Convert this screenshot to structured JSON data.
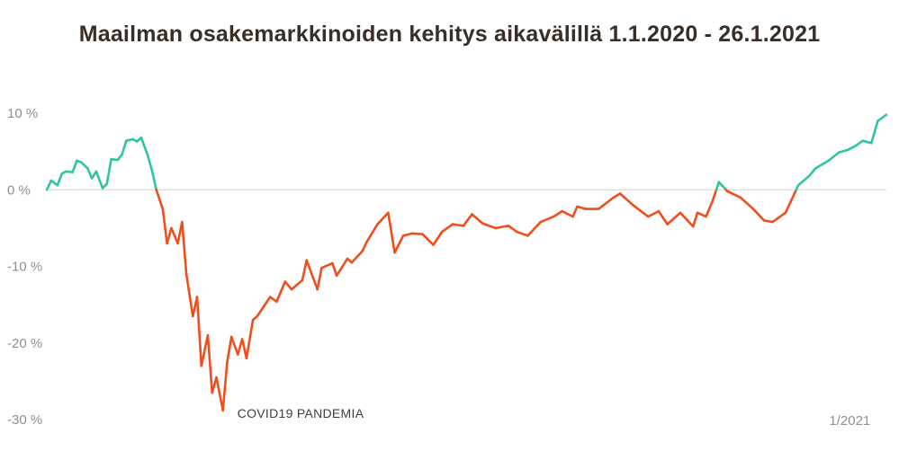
{
  "chart_data": {
    "type": "line",
    "title": "Maailman osakemarkkinoiden kehitys aikavälillä 1.1.2020 - 26.1.2021",
    "xlabel": "",
    "ylabel": "",
    "y_ticks": [
      "10 %",
      "0 %",
      "-10 %",
      "-20 %",
      "-30 %"
    ],
    "y_tick_values": [
      10,
      0,
      -10,
      -20,
      -30
    ],
    "ylim": [
      -30,
      10
    ],
    "x_tick_labels": [
      {
        "date": "2021-01-01",
        "label": "1/2021"
      }
    ],
    "xlim": [
      "2020-01-01",
      "2021-01-26"
    ],
    "annotation": "COVID19 PANDEMIA",
    "grid": "zero line only",
    "colors": {
      "positive": "#2ec4a5",
      "negative": "#f04e1d",
      "zero_line": "#d0d0d0"
    },
    "series": [
      {
        "x": [
          "2020-01-01",
          "2020-01-03",
          "2020-01-06",
          "2020-01-08",
          "2020-01-10",
          "2020-01-13",
          "2020-01-15",
          "2020-01-17",
          "2020-01-20",
          "2020-01-22",
          "2020-01-24",
          "2020-01-27",
          "2020-01-29",
          "2020-01-31",
          "2020-02-03",
          "2020-02-05",
          "2020-02-07",
          "2020-02-10",
          "2020-02-12",
          "2020-02-14",
          "2020-02-17",
          "2020-02-19",
          "2020-02-21",
          "2020-02-24",
          "2020-02-26",
          "2020-02-28",
          "2020-03-02",
          "2020-03-04",
          "2020-03-06",
          "2020-03-09",
          "2020-03-11",
          "2020-03-13",
          "2020-03-16",
          "2020-03-18",
          "2020-03-20",
          "2020-03-23",
          "2020-03-25",
          "2020-03-27",
          "2020-03-30",
          "2020-04-01",
          "2020-04-03",
          "2020-04-06",
          "2020-04-08",
          "2020-04-14",
          "2020-04-17",
          "2020-04-21",
          "2020-04-24",
          "2020-04-29",
          "2020-05-01",
          "2020-05-06",
          "2020-05-08",
          "2020-05-13",
          "2020-05-15",
          "2020-05-20",
          "2020-05-22",
          "2020-05-27",
          "2020-05-29",
          "2020-06-03",
          "2020-06-08",
          "2020-06-11",
          "2020-06-15",
          "2020-06-19",
          "2020-06-24",
          "2020-06-29",
          "2020-07-03",
          "2020-07-08",
          "2020-07-13",
          "2020-07-17",
          "2020-07-22",
          "2020-07-28",
          "2020-08-03",
          "2020-08-07",
          "2020-08-12",
          "2020-08-18",
          "2020-08-24",
          "2020-08-28",
          "2020-09-02",
          "2020-09-04",
          "2020-09-08",
          "2020-09-14",
          "2020-09-21",
          "2020-09-24",
          "2020-09-30",
          "2020-10-07",
          "2020-10-12",
          "2020-10-16",
          "2020-10-22",
          "2020-10-28",
          "2020-10-30",
          "2020-11-03",
          "2020-11-06",
          "2020-11-09",
          "2020-11-13",
          "2020-11-19",
          "2020-11-25",
          "2020-11-30",
          "2020-12-04",
          "2020-12-10",
          "2020-12-16",
          "2020-12-21",
          "2020-12-24",
          "2020-12-30",
          "2021-01-04",
          "2021-01-08",
          "2021-01-12",
          "2021-01-15",
          "2021-01-19",
          "2021-01-22",
          "2021-01-26"
        ],
        "values": [
          0,
          1.2,
          0.6,
          2.1,
          2.4,
          2.3,
          3.8,
          3.6,
          2.8,
          1.5,
          2.4,
          0.2,
          0.8,
          4.0,
          3.9,
          4.6,
          6.4,
          6.6,
          6.3,
          6.8,
          4.5,
          2.5,
          0,
          -2.5,
          -7,
          -5,
          -7,
          -4.2,
          -11,
          -16.5,
          -14,
          -23,
          -19,
          -26.5,
          -24.5,
          -28.8,
          -22.5,
          -19.2,
          -21.5,
          -19.5,
          -22,
          -17,
          -16.5,
          -14,
          -14.6,
          -12,
          -13,
          -11.8,
          -9.2,
          -13,
          -10.2,
          -9.6,
          -11.2,
          -9,
          -9.5,
          -8,
          -6.8,
          -4.5,
          -3,
          -8.2,
          -6,
          -5.7,
          -5.8,
          -7.2,
          -5.5,
          -4.5,
          -4.7,
          -3.2,
          -4.4,
          -5,
          -4.7,
          -5.5,
          -6,
          -4.2,
          -3.5,
          -2.8,
          -3.5,
          -2.2,
          -2.5,
          -2.5,
          -1,
          -0.5,
          -2,
          -3.5,
          -2.8,
          -4.5,
          -3,
          -4.8,
          -3,
          -3.5,
          -1.5,
          1.0,
          -0.2,
          -1,
          -2.5,
          -4,
          -4.2,
          -3,
          0.6,
          1.8,
          2.8,
          3.8,
          4.9,
          5.2,
          5.8,
          6.4,
          6.1,
          9.0,
          9.8
        ]
      }
    ]
  }
}
